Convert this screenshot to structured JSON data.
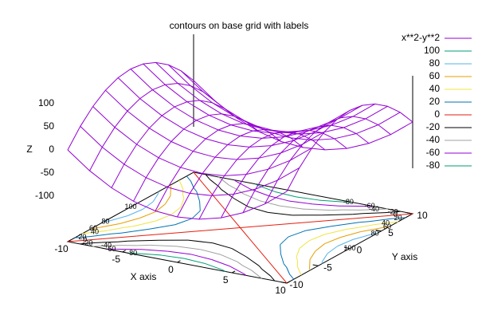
{
  "chart_data": {
    "type": "surface",
    "title": "contours on base grid with labels",
    "xlabel": "X axis",
    "ylabel": "Y axis",
    "zlabel": "Z",
    "x": [
      -10,
      -8,
      -6,
      -4,
      -2,
      0,
      2,
      4,
      6,
      8,
      10
    ],
    "y": [
      -10,
      -8,
      -6,
      -4,
      -2,
      0,
      2,
      4,
      6,
      8,
      10
    ],
    "series": [
      {
        "name": "x**2-y**2",
        "color": "#9400d3",
        "z": [
          [
            0,
            -36,
            -64,
            -84,
            -96,
            -100,
            -96,
            -84,
            -64,
            -36,
            0
          ],
          [
            36,
            0,
            -28,
            -48,
            -60,
            -64,
            -60,
            -48,
            -28,
            0,
            36
          ],
          [
            64,
            28,
            0,
            -20,
            -32,
            -36,
            -32,
            -20,
            0,
            28,
            64
          ],
          [
            84,
            48,
            20,
            0,
            -12,
            -16,
            -12,
            0,
            20,
            48,
            84
          ],
          [
            96,
            60,
            32,
            12,
            0,
            -4,
            0,
            12,
            32,
            60,
            96
          ],
          [
            100,
            64,
            36,
            16,
            4,
            0,
            4,
            16,
            36,
            64,
            100
          ],
          [
            96,
            60,
            32,
            12,
            0,
            -4,
            0,
            12,
            32,
            60,
            96
          ],
          [
            84,
            48,
            20,
            0,
            -12,
            -16,
            -12,
            0,
            20,
            48,
            84
          ],
          [
            64,
            28,
            0,
            -20,
            -32,
            -36,
            -32,
            -20,
            0,
            28,
            64
          ],
          [
            36,
            0,
            -28,
            -48,
            -60,
            -64,
            -60,
            -48,
            -28,
            0,
            36
          ],
          [
            0,
            -36,
            -64,
            -84,
            -96,
            -100,
            -96,
            -84,
            -64,
            -36,
            0
          ]
        ]
      }
    ],
    "contours": [
      {
        "level": 100,
        "color": "#009e73"
      },
      {
        "level": 80,
        "color": "#56b4e9"
      },
      {
        "level": 60,
        "color": "#e69f00"
      },
      {
        "level": 40,
        "color": "#f0e442"
      },
      {
        "level": 20,
        "color": "#0072b2"
      },
      {
        "level": 0,
        "color": "#e51e10"
      },
      {
        "level": -20,
        "color": "#000000"
      },
      {
        "level": -40,
        "color": "#a0a0a0"
      },
      {
        "level": -60,
        "color": "#9400d3"
      },
      {
        "level": -80,
        "color": "#009e73"
      }
    ],
    "xlim": [
      -10,
      10
    ],
    "xticks": [
      -10,
      -5,
      0,
      5,
      10
    ],
    "ylim": [
      -10,
      10
    ],
    "yticks": [
      -10,
      -5,
      0,
      5,
      10
    ],
    "zlim": [
      -100,
      100
    ],
    "zticks": [
      -100,
      -50,
      0,
      50,
      100
    ]
  }
}
